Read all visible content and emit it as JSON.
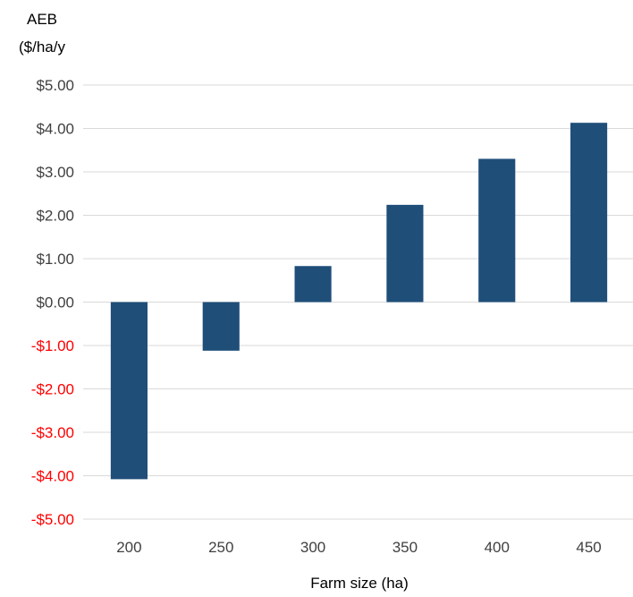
{
  "chart_data": {
    "type": "bar",
    "title": "",
    "ylabel_lines": [
      "AEB",
      "($/ha/y"
    ],
    "xlabel": "Farm size (ha)",
    "categories": [
      "200",
      "250",
      "300",
      "350",
      "400",
      "450"
    ],
    "series": [
      {
        "values": [
          -4.08,
          -1.12,
          0.83,
          2.24,
          3.3,
          4.13
        ]
      }
    ],
    "ylim": [
      -5,
      5
    ],
    "yticks": [
      5,
      4,
      3,
      2,
      1,
      0,
      -1,
      -2,
      -3,
      -4,
      -5
    ],
    "ytick_labels": [
      "$5.00",
      "$4.00",
      "$3.00",
      "$2.00",
      "$1.00",
      "$0.00",
      "-$1.00",
      "-$2.00",
      "-$3.00",
      "-$4.00",
      "-$5.00"
    ],
    "grid": true,
    "legend": "none",
    "colors": {
      "bar": "#1f4e79",
      "gridline": "#d9d9d9",
      "positive_tick_text": "#404040",
      "negative_tick_text": "#ff0000",
      "label_text": "#000000"
    }
  }
}
